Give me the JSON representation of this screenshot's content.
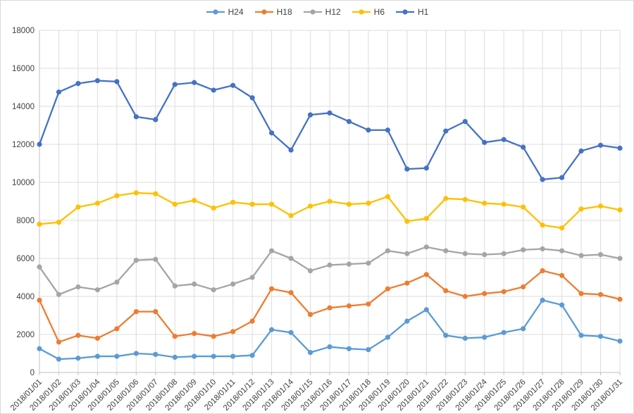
{
  "chart_data": {
    "type": "line",
    "title": "",
    "xlabel": "",
    "ylabel": "",
    "ylim": [
      0,
      18000
    ],
    "ytick_step": 2000,
    "grid": "both",
    "legend_position": "top-center",
    "gridline_color": "#dcdcdc",
    "axis_line_color": "#bfbfbf",
    "axis_text_color": "#404040",
    "x": [
      "2018/01/01",
      "2018/01/02",
      "2018/01/03",
      "2018/01/04",
      "2018/01/05",
      "2018/01/06",
      "2018/01/07",
      "2018/01/08",
      "2018/01/09",
      "2018/01/10",
      "2018/01/11",
      "2018/01/12",
      "2018/01/13",
      "2018/01/14",
      "2018/01/15",
      "2018/01/16",
      "2018/01/17",
      "2018/01/18",
      "2018/01/19",
      "2018/01/20",
      "2018/01/21",
      "2018/01/22",
      "2018/01/23",
      "2018/01/24",
      "2018/01/25",
      "2018/01/26",
      "2018/01/27",
      "2018/01/28",
      "2018/01/29",
      "2018/01/30",
      "2018/01/31"
    ],
    "series": [
      {
        "name": "H24",
        "color": "#5B9BD5",
        "values": [
          1250,
          700,
          750,
          850,
          850,
          1000,
          950,
          800,
          850,
          850,
          850,
          900,
          2250,
          2100,
          1050,
          1350,
          1250,
          1200,
          1850,
          2700,
          3300,
          1950,
          1800,
          1850,
          2100,
          2300,
          3800,
          3550,
          1950,
          1900,
          1650
        ]
      },
      {
        "name": "H18",
        "color": "#ED7D31",
        "values": [
          3800,
          1600,
          1950,
          1800,
          2300,
          3200,
          3200,
          1900,
          2050,
          1900,
          2150,
          2700,
          4400,
          4200,
          3050,
          3400,
          3500,
          3600,
          4400,
          4700,
          5150,
          4300,
          4000,
          4150,
          4250,
          4500,
          5350,
          5100,
          4150,
          4100,
          3850
        ]
      },
      {
        "name": "H12",
        "color": "#A5A5A5",
        "values": [
          5550,
          4100,
          4500,
          4350,
          4750,
          5900,
          5950,
          4550,
          4650,
          4350,
          4650,
          5000,
          6400,
          6000,
          5350,
          5650,
          5700,
          5750,
          6400,
          6250,
          6600,
          6400,
          6250,
          6200,
          6250,
          6450,
          6500,
          6400,
          6150,
          6200,
          6000
        ]
      },
      {
        "name": "H6",
        "color": "#FFC000",
        "values": [
          7800,
          7900,
          8700,
          8900,
          9300,
          9450,
          9400,
          8850,
          9050,
          8650,
          8950,
          8850,
          8850,
          8250,
          8750,
          9000,
          8850,
          8900,
          9250,
          7950,
          8100,
          9150,
          9100,
          8900,
          8850,
          8700,
          7750,
          7600,
          8600,
          8750,
          8550
        ]
      },
      {
        "name": "H1",
        "color": "#4472C4",
        "values": [
          12000,
          14750,
          15200,
          15350,
          15300,
          13450,
          13300,
          15150,
          15250,
          14850,
          15100,
          14450,
          12600,
          11700,
          13550,
          13650,
          13200,
          12750,
          12750,
          10700,
          10750,
          12700,
          13200,
          12100,
          12250,
          11850,
          10150,
          10250,
          11650,
          11950,
          11800
        ]
      }
    ]
  }
}
